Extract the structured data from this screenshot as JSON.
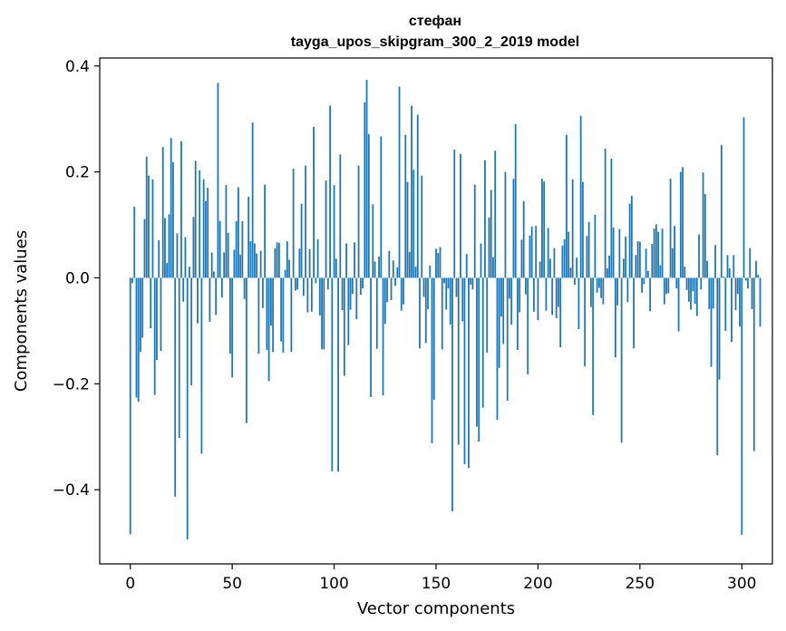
{
  "chart_data": {
    "type": "bar",
    "title": "стефан",
    "subtitle": "tayga_upos_skipgram_300_2_2019 model",
    "xlabel": "Vector components",
    "ylabel": "Components values",
    "xlim": [
      -15,
      315
    ],
    "ylim": [
      -0.54,
      0.415
    ],
    "x_ticks": [
      0,
      50,
      100,
      150,
      200,
      250,
      300
    ],
    "x_tick_labels": [
      "0",
      "50",
      "100",
      "150",
      "200",
      "250",
      "300"
    ],
    "y_ticks": [
      -0.4,
      -0.2,
      0.0,
      0.2,
      0.4
    ],
    "y_tick_labels": [
      "−0.4",
      "−0.2",
      "0.0",
      "0.2",
      "0.4"
    ],
    "bar_color": "#1f77b4",
    "grid": false,
    "values": [
      -0.484,
      -0.01,
      0.134,
      -0.226,
      -0.234,
      -0.14,
      -0.113,
      0.111,
      0.229,
      0.193,
      -0.095,
      0.186,
      -0.221,
      -0.155,
      0.071,
      -0.138,
      0.247,
      0.113,
      0.028,
      0.12,
      0.264,
      0.218,
      -0.413,
      0.084,
      -0.302,
      0.258,
      -0.045,
      0.077,
      -0.494,
      0.021,
      -0.203,
      0.115,
      0.221,
      -0.086,
      0.203,
      -0.332,
      0.186,
      0.145,
      0.17,
      -0.083,
      0.048,
      0.012,
      -0.07,
      0.368,
      0.107,
      -0.037,
      0.048,
      0.175,
      0.085,
      -0.143,
      -0.188,
      0.053,
      0.107,
      0.171,
      0.044,
      0.107,
      -0.04,
      -0.274,
      0.153,
      0.069,
      0.293,
      0.065,
      0.046,
      -0.143,
      0.051,
      -0.057,
      0.176,
      -0.136,
      -0.195,
      -0.09,
      -0.14,
      0.056,
      0.067,
      0.066,
      -0.12,
      -0.141,
      0.015,
      0.069,
      0.034,
      -0.14,
      0.206,
      -0.024,
      -0.022,
      0.055,
      0.14,
      -0.034,
      0.212,
      -0.065,
      0.054,
      -0.064,
      0.285,
      -0.01,
      0.073,
      -0.071,
      -0.135,
      -0.135,
      0.184,
      -0.022,
      0.325,
      -0.365,
      0.175,
      0.036,
      -0.366,
      0.233,
      -0.061,
      -0.185,
      0.065,
      -0.127,
      -0.06,
      -0.03,
      0.067,
      -0.078,
      0.212,
      -0.032,
      -0.02,
      0.331,
      0.374,
      0.271,
      -0.225,
      0.139,
      0.031,
      -0.134,
      0.04,
      0.267,
      -0.222,
      -0.087,
      -0.046,
      0.051,
      -0.042,
      0.033,
      -0.015,
      0.02,
      0.361,
      -0.062,
      -0.05,
      0.27,
      0.181,
      0.049,
      0.325,
      0.204,
      0.021,
      0.308,
      -0.133,
      0.193,
      -0.036,
      -0.123,
      -0.059,
      0.023,
      -0.312,
      -0.23,
      0.055,
      0.047,
      0.058,
      -0.135,
      -0.01,
      -0.06,
      -0.02,
      -0.088,
      -0.441,
      0.242,
      -0.036,
      -0.315,
      0.234,
      -0.082,
      -0.352,
      0.045,
      -0.359,
      -0.013,
      -0.022,
      0.176,
      -0.281,
      -0.309,
      0.065,
      -0.245,
      0.222,
      -0.141,
      0.114,
      0.166,
      0.039,
      0.24,
      -0.268,
      -0.17,
      -0.073,
      -0.125,
      0.2,
      -0.232,
      -0.039,
      -0.088,
      0.187,
      0.29,
      -0.136,
      -0.065,
      0.072,
      0.145,
      -0.031,
      -0.182,
      0.08,
      0.097,
      -0.064,
      0.098,
      -0.08,
      0.031,
      0.187,
      0.182,
      -0.062,
      0.094,
      0.036,
      -0.07,
      0.056,
      -0.076,
      -0.055,
      -0.131,
      0.061,
      0.073,
      0.27,
      0.087,
      0.019,
      0.186,
      -0.013,
      0.038,
      -0.097,
      0.306,
      0.181,
      -0.167,
      0.079,
      0.106,
      -0.055,
      -0.259,
      0.119,
      -0.028,
      -0.019,
      -0.038,
      -0.05,
      0.244,
      0.018,
      0.042,
      0.225,
      0.095,
      -0.15,
      -0.052,
      0.092,
      -0.311,
      0.036,
      0.078,
      -0.046,
      0.14,
      0.155,
      -0.133,
      0.043,
      0.069,
      0.068,
      -0.028,
      -0.012,
      0.055,
      0.013,
      -0.063,
      0.064,
      0.093,
      0.101,
      0.087,
      0.024,
      0.093,
      -0.05,
      -0.03,
      -0.029,
      0.187,
      0.056,
      0.098,
      -0.02,
      -0.101,
      0.2,
      0.209,
      0.021,
      -0.023,
      -0.045,
      -0.06,
      -0.025,
      -0.049,
      -0.072,
      0.082,
      -0.022,
      0.199,
      0.158,
      0.032,
      -0.059,
      -0.168,
      -0.058,
      0.062,
      -0.335,
      -0.192,
      0.251,
      0.002,
      -0.1,
      0.043,
      0.018,
      -0.121,
      0.043,
      -0.061,
      -0.03,
      -0.092,
      -0.485,
      0.303,
      -0.005,
      -0.02,
      0.056,
      -0.059,
      -0.327,
      0.032,
      0.006,
      -0.092
    ]
  }
}
